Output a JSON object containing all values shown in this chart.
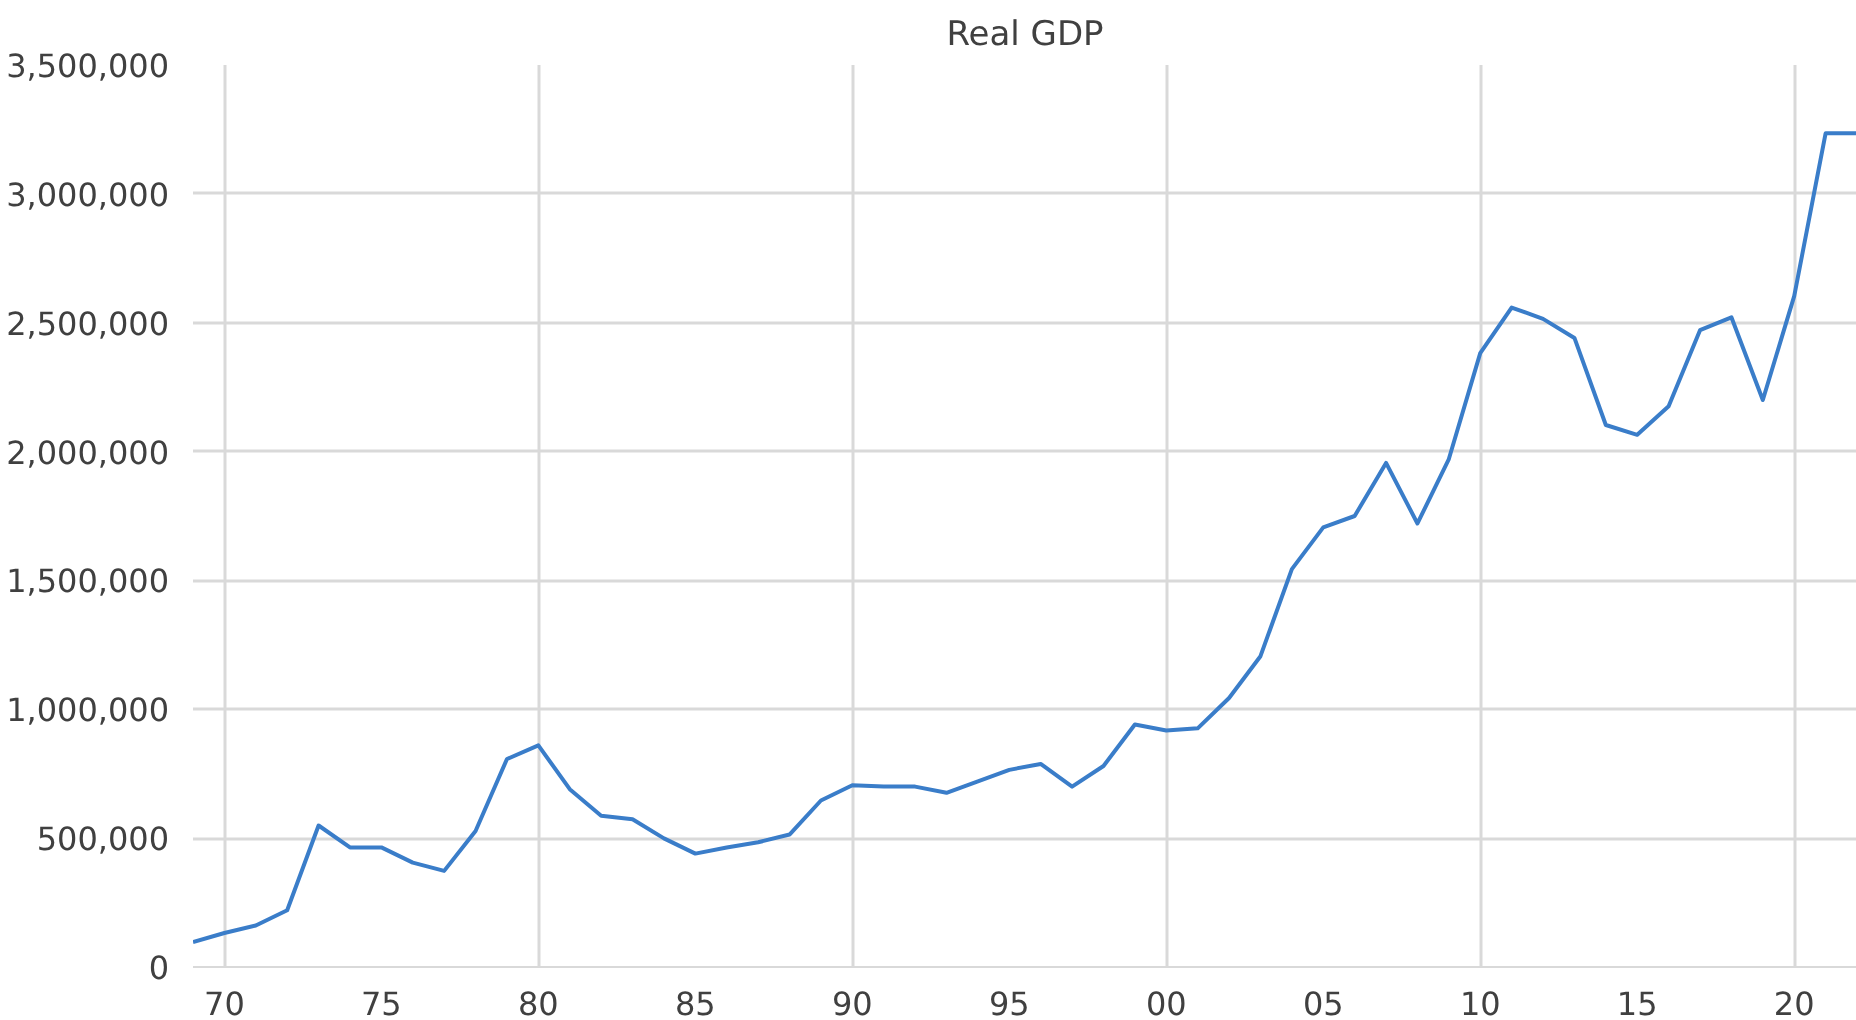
{
  "chart_data": {
    "type": "line",
    "title": "Real GDP",
    "x": [
      1969,
      1970,
      1971,
      1972,
      1973,
      1974,
      1975,
      1976,
      1977,
      1978,
      1979,
      1980,
      1981,
      1982,
      1983,
      1984,
      1985,
      1986,
      1987,
      1988,
      1989,
      1990,
      1991,
      1992,
      1993,
      1994,
      1995,
      1996,
      1997,
      1998,
      1999,
      2000,
      2001,
      2002,
      2003,
      2004,
      2005,
      2006,
      2007,
      2008,
      2009,
      2010,
      2011,
      2012,
      2013,
      2014,
      2015,
      2016,
      2017,
      2018,
      2019,
      2020,
      2021,
      2022
    ],
    "series": [
      {
        "color": "#3a7dc9",
        "values": [
          97000,
          132000,
          161000,
          220000,
          549000,
          464000,
          464000,
          405000,
          373000,
          528000,
          807000,
          860000,
          690000,
          587000,
          573000,
          499000,
          440000,
          464000,
          484000,
          514000,
          646000,
          705000,
          700000,
          700000,
          676000,
          720000,
          765000,
          788000,
          700000,
          780000,
          941000,
          918000,
          926000,
          1044000,
          1206000,
          1544000,
          1706000,
          1750000,
          1956000,
          1721000,
          1971000,
          2382000,
          2559000,
          2515000,
          2441000,
          2103000,
          2065000,
          2176000,
          2471000,
          2521000,
          2200000,
          2603000,
          3235000,
          3235000
        ]
      }
    ],
    "xlim": [
      1969,
      2022
    ],
    "xticks": [
      {
        "value": 1970,
        "label": "70"
      },
      {
        "value": 1975,
        "label": "75"
      },
      {
        "value": 1980,
        "label": "80"
      },
      {
        "value": 1985,
        "label": "85"
      },
      {
        "value": 1990,
        "label": "90"
      },
      {
        "value": 1995,
        "label": "95"
      },
      {
        "value": 2000,
        "label": "00"
      },
      {
        "value": 2005,
        "label": "05"
      },
      {
        "value": 2010,
        "label": "10"
      },
      {
        "value": 2015,
        "label": "15"
      },
      {
        "value": 2020,
        "label": "20"
      }
    ],
    "ylim": [
      0,
      3500000
    ],
    "yticks": [
      {
        "value": 0,
        "label": "0"
      },
      {
        "value": 500000,
        "label": "500,000"
      },
      {
        "value": 1000000,
        "label": "1,000,000"
      },
      {
        "value": 1500000,
        "label": "1,500,000"
      },
      {
        "value": 2000000,
        "label": "2,000,000"
      },
      {
        "value": 2500000,
        "label": "2,500,000"
      },
      {
        "value": 3000000,
        "label": "3,000,000"
      },
      {
        "value": 3500000,
        "label": "3,500,000"
      }
    ],
    "grid": true,
    "line_style": "solid"
  }
}
